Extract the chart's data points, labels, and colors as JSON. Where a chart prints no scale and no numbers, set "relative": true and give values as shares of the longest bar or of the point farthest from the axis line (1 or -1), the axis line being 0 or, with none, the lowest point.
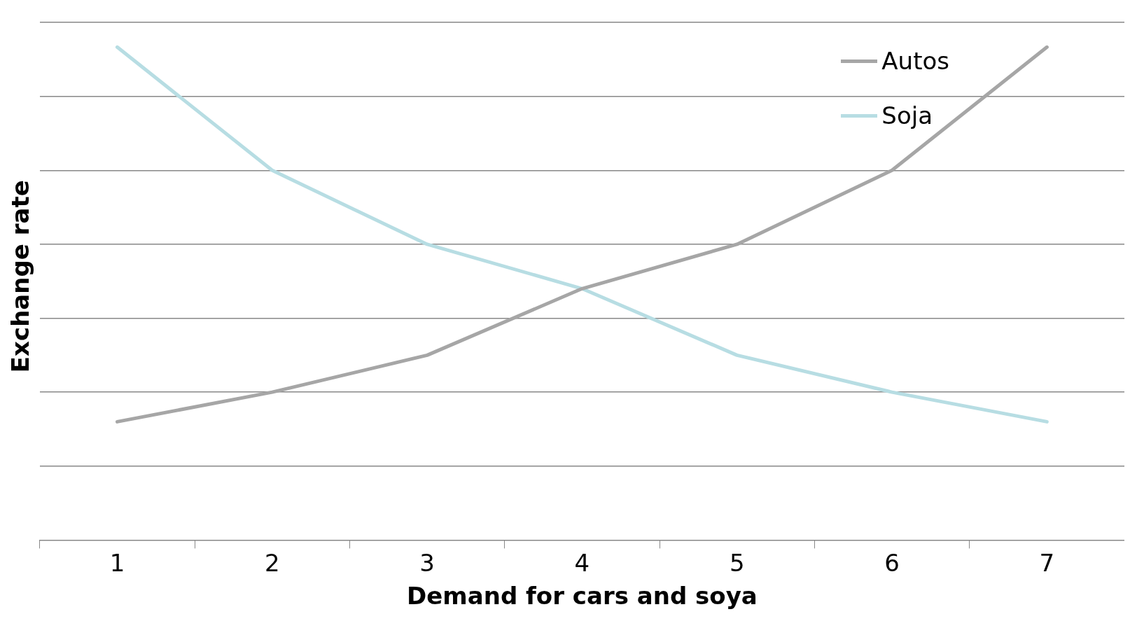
{
  "chart_data": {
    "type": "line",
    "xlabel": "Demand for cars and soya",
    "ylabel": "Exchange rate",
    "categories": [
      "1",
      "2",
      "3",
      "4",
      "5",
      "6",
      "7"
    ],
    "relative": true,
    "series": [
      {
        "name": "Autos",
        "color": "#a6a6a6",
        "values": [
          0.24,
          0.3,
          0.375,
          0.51,
          0.6,
          0.75,
          1
        ]
      },
      {
        "name": "Soja",
        "color": "#b7dde3",
        "values": [
          1,
          0.75,
          0.6,
          0.51,
          0.375,
          0.3,
          0.24
        ]
      }
    ],
    "grid": "y",
    "legend": "top right",
    "marker": "none",
    "line_style": "solid"
  }
}
